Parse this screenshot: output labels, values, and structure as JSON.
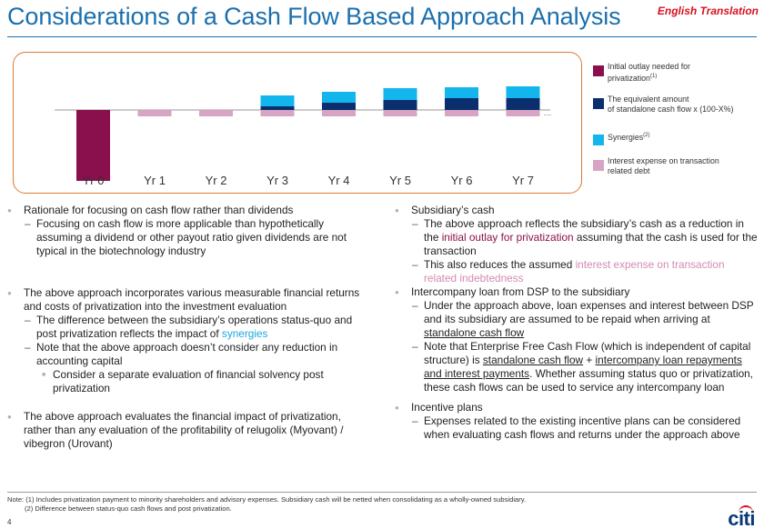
{
  "header": {
    "title": "Considerations of a Cash Flow Based Approach Analysis",
    "translation_note": "English Translation"
  },
  "chart_data": {
    "type": "bar",
    "stacked": true,
    "title": "",
    "xlabel": "",
    "ylabel": "",
    "categories": [
      "Yr 0",
      "Yr 1",
      "Yr 2",
      "Yr 3",
      "Yr 4",
      "Yr 5",
      "Yr 6",
      "Yr 7"
    ],
    "ylim": [
      -80,
      30
    ],
    "grid": false,
    "legend_position": "right",
    "series": [
      {
        "name": "Initial outlay needed for privatization",
        "color": "#8a0f4d",
        "values": [
          -78,
          0,
          0,
          0,
          0,
          0,
          0,
          0
        ]
      },
      {
        "name": "Interest expense on transaction related debt",
        "color": "#d7a4c3",
        "values": [
          0,
          -7,
          -7,
          -7,
          -7,
          -7,
          -7,
          -7
        ]
      },
      {
        "name": "The equivalent amount of standalone cash flow x (100-X%)",
        "color": "#0b2e6e",
        "values": [
          0,
          0,
          0,
          4,
          8,
          11,
          13,
          13
        ]
      },
      {
        "name": "Synergies",
        "color": "#12b5ec",
        "values": [
          0,
          0,
          0,
          12,
          12,
          13,
          12,
          13
        ]
      }
    ],
    "annotations": [
      "Yr 7 bars are followed by an ellipsis indicating continuation"
    ]
  },
  "legend": {
    "items": [
      {
        "label": "Initial outlay needed for\nprivatization",
        "sup": "(1)",
        "color": "#8a0f4d"
      },
      {
        "label": "The equivalent amount\nof standalone cash flow x (100-X%)",
        "sup": "",
        "color": "#0b2e6e"
      },
      {
        "label": "Synergies",
        "sup": "(2)",
        "color": "#12b5ec"
      },
      {
        "label": "Interest expense on transaction\nrelated debt",
        "sup": "",
        "color": "#d7a4c3"
      }
    ]
  },
  "left": {
    "p1": "Rationale for focusing on cash flow rather than dividends",
    "p1a": "Focusing on cash flow is more applicable than hypothetically assuming a dividend or other payout ratio given dividends are not typical in the biotechnology industry",
    "p2": "The above approach incorporates various measurable financial returns and costs of privatization into the investment evaluation",
    "p2a_pre": "The difference between the subsidiary’s operations status-quo and post privatization reflects the impact of ",
    "p2a_hl": "synergies",
    "p2b": "Note that the above approach doesn’t consider any reduction in accounting capital",
    "p2b1": "Consider a separate evaluation of financial solvency post privatization",
    "p3": "The above approach evaluates the financial impact of privatization, rather than any evaluation of the profitability of relugolix (Myovant) / vibegron (Urovant)"
  },
  "right": {
    "p1": "Subsidiary’s cash",
    "p1a_pre": "The above approach reflects the subsidiary’s cash as a reduction in the ",
    "p1a_hl": "initial outlay for privatization",
    "p1a_post": " assuming that the cash is used for the transaction",
    "p1b_pre": "This also reduces the assumed ",
    "p1b_hl": "interest expense on transaction related indebtedness",
    "p2": "Intercompany loan from DSP to the subsidiary",
    "p2a_pre": "Under the approach above, loan expenses and interest between DSP and its subsidiary are assumed to be repaid when arriving at ",
    "p2a_u": "standalone cash flow",
    "p2b_pre": "Note that Enterprise Free Cash Flow (which is independent of capital structure) is ",
    "p2b_u1": "standalone cash flow",
    "p2b_mid": " + ",
    "p2b_u2": "intercompany loan repayments and interest payments",
    "p2b_post": ". Whether assuming status quo or privatization, these cash flows can be used to service any intercompany loan",
    "p3": "Incentive plans",
    "p3a": "Expenses related to the existing incentive plans can be considered when evaluating cash flows and returns under the approach above"
  },
  "footer": {
    "note": "Note: (1) Includes privatization payment to minority shareholders and advisory expenses. Subsidiary cash will be netted when consolidating as a wholly-owned subsidiary.\n         (2) Difference between status-quo cash flows and post privatization.",
    "page_number": "4",
    "logo_text": "citi"
  }
}
